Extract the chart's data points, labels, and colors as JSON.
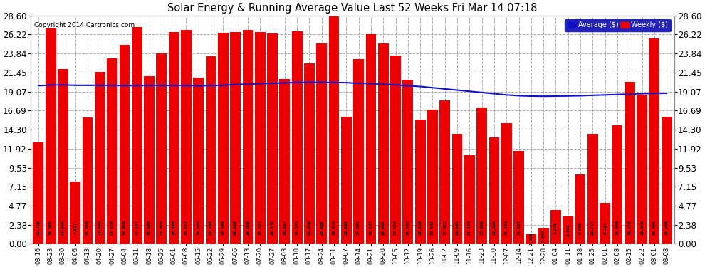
{
  "title": "Solar Energy & Running Average Value Last 52 Weeks Fri Mar 14 07:18",
  "copyright": "Copyright 2014 Cartronics.com",
  "bar_color": "#ee0000",
  "avg_line_color": "#1111cc",
  "background_color": "#ffffff",
  "plot_bg_color": "#ffffff",
  "grid_color": "#aaaaaa",
  "ytick_labels": [
    "0.00",
    "2.38",
    "4.77",
    "7.15",
    "9.53",
    "11.92",
    "14.30",
    "16.69",
    "19.07",
    "21.45",
    "23.84",
    "26.22",
    "28.60"
  ],
  "ytick_values": [
    0.0,
    2.38,
    4.77,
    7.15,
    9.53,
    11.92,
    14.3,
    16.69,
    19.07,
    21.45,
    23.84,
    26.22,
    28.6
  ],
  "categories": [
    "03-16",
    "03-23",
    "03-30",
    "04-06",
    "04-13",
    "04-20",
    "04-27",
    "05-04",
    "05-11",
    "05-18",
    "05-25",
    "06-01",
    "06-08",
    "06-15",
    "06-22",
    "06-29",
    "07-06",
    "07-13",
    "07-20",
    "07-27",
    "08-03",
    "08-10",
    "08-17",
    "08-24",
    "08-31",
    "09-07",
    "09-14",
    "09-21",
    "09-28",
    "10-05",
    "10-12",
    "10-19",
    "10-26",
    "11-02",
    "11-09",
    "11-16",
    "11-23",
    "11-30",
    "12-07",
    "12-14",
    "12-21",
    "12-28",
    "01-04",
    "01-11",
    "01-18",
    "01-25",
    "02-01",
    "02-08",
    "02-15",
    "02-22",
    "03-01",
    "03-08"
  ],
  "values": [
    12.718,
    26.98,
    21.919,
    7.817,
    15.829,
    21.568,
    23.216,
    24.959,
    27.127,
    20.996,
    23.82,
    26.538,
    26.817,
    20.82,
    23.488,
    26.399,
    26.538,
    26.8,
    26.553,
    26.342,
    20.597,
    26.593,
    22.626,
    25.065,
    29.614,
    15.885,
    23.095,
    26.227,
    25.065,
    23.614,
    20.538,
    15.518,
    16.842,
    17.925,
    13.802,
    11.125,
    17.089,
    13.339,
    15.134,
    11.657,
    1.236,
    2.043,
    4.248,
    3.392,
    8.686,
    13.774,
    5.134,
    14.839,
    20.27,
    18.64,
    25.765,
    15.936
  ],
  "avg_values": [
    19.8,
    19.88,
    19.9,
    19.85,
    19.85,
    19.85,
    19.83,
    19.82,
    19.83,
    19.83,
    19.84,
    19.83,
    19.83,
    19.8,
    19.83,
    19.85,
    19.95,
    20.0,
    20.05,
    20.1,
    20.15,
    20.2,
    20.22,
    20.22,
    20.2,
    20.18,
    20.1,
    20.05,
    20.0,
    19.9,
    19.8,
    19.7,
    19.55,
    19.4,
    19.25,
    19.1,
    18.95,
    18.8,
    18.65,
    18.55,
    18.5,
    18.48,
    18.5,
    18.52,
    18.55,
    18.6,
    18.65,
    18.7,
    18.75,
    18.8,
    18.85,
    18.85
  ],
  "legend_avg_color": "#1111cc",
  "legend_weekly_color": "#ee0000",
  "legend_avg_label": "Average ($)",
  "legend_weekly_label": "Weekly ($)"
}
